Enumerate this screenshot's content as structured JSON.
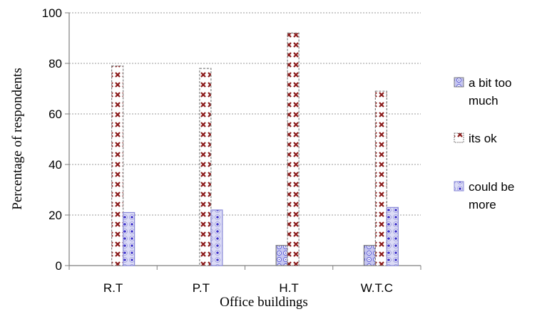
{
  "chart_data": {
    "type": "bar",
    "categories": [
      "R.T",
      "P.T",
      "H.T",
      "W.T.C"
    ],
    "series": [
      {
        "name": "a bit too much",
        "values": [
          0,
          0,
          8,
          8
        ],
        "color": "#5b5bd6"
      },
      {
        "name": "its ok",
        "values": [
          79,
          78,
          92,
          69
        ],
        "color": "#8b1a1a"
      },
      {
        "name": "could be more",
        "values": [
          21,
          22,
          0,
          23
        ],
        "color": "#3b2fc9"
      }
    ],
    "title": "",
    "xlabel": "Office buildings",
    "ylabel": "Percentage of respondents",
    "ylim": [
      0,
      100
    ],
    "yticks": [
      0,
      20,
      40,
      60,
      80,
      100
    ],
    "grid": true,
    "legend": "right",
    "legend_labels": [
      [
        "a bit too",
        "much"
      ],
      [
        "its ok"
      ],
      [
        "could be",
        "more"
      ]
    ]
  }
}
